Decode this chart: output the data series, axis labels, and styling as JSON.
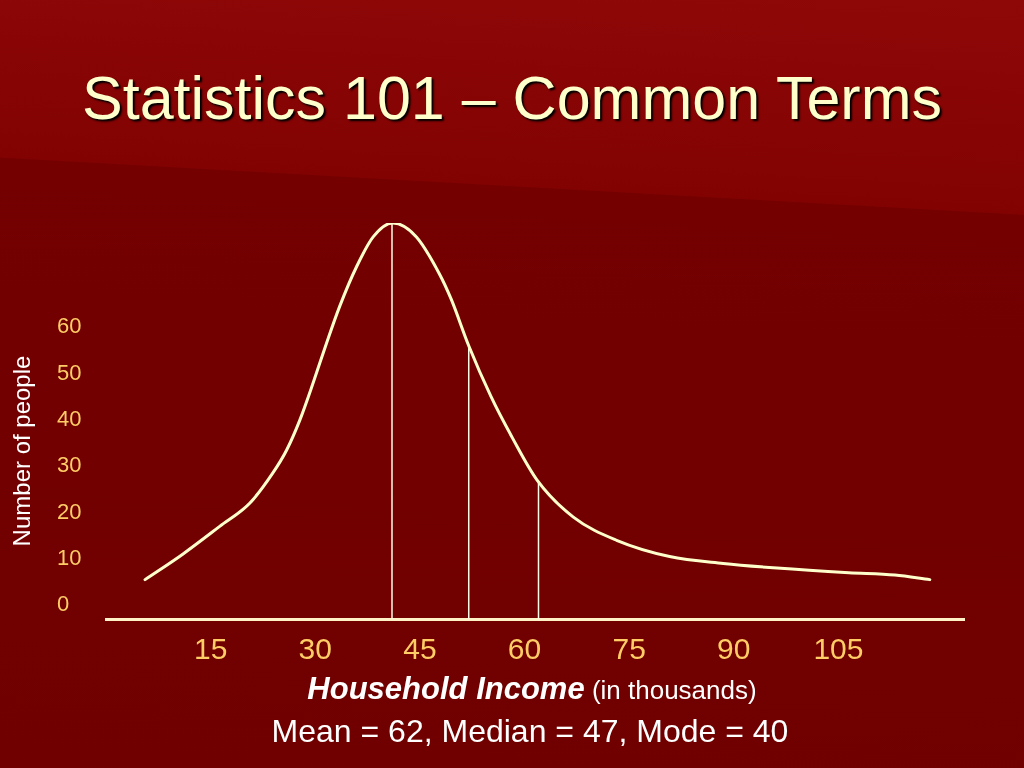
{
  "chart_data": {
    "type": "line",
    "title": "Statistics 101 – Common Terms",
    "xlabel": "Household Income (in thousands)",
    "ylabel": "Number of people",
    "annotations": [
      "Mean = 62, Median = 47, Mode = 40"
    ],
    "x": [
      5.6,
      11.0,
      16.3,
      20.6,
      23.9,
      25.9,
      27.8,
      29.7,
      31.6,
      33.5,
      35.9,
      38.3,
      41.1,
      44.5,
      47.8,
      49.5,
      52.0,
      55.2,
      58.3,
      61.8,
      67.0,
      73.2,
      80.8,
      88.5,
      96.2,
      106.5,
      113.1,
      118.1
    ],
    "series": [
      {
        "color": "#ffffcc",
        "values": [
          5.5,
          11,
          17,
          22,
          28.5,
          33.5,
          40,
          48,
          56.5,
          64.5,
          73,
          79.5,
          82.5,
          79.5,
          71.5,
          66,
          56,
          45,
          36,
          27,
          19,
          14,
          10.5,
          9,
          8,
          7,
          6.5,
          5.5
        ]
      }
    ],
    "xlim": [
      0,
      123
    ],
    "xticks": [
      15,
      30,
      45,
      60,
      75,
      90,
      105
    ],
    "ylim": [
      -3,
      82.5
    ],
    "yticks": [
      0,
      10,
      20,
      30,
      40,
      50,
      60
    ],
    "ref_lines": [
      {
        "axis": "x",
        "value": 41,
        "color": "#fffbe6"
      },
      {
        "axis": "x",
        "value": 52,
        "color": "#fffbe6"
      },
      {
        "axis": "x",
        "value": 62,
        "color": "#fffbe6"
      }
    ]
  }
}
